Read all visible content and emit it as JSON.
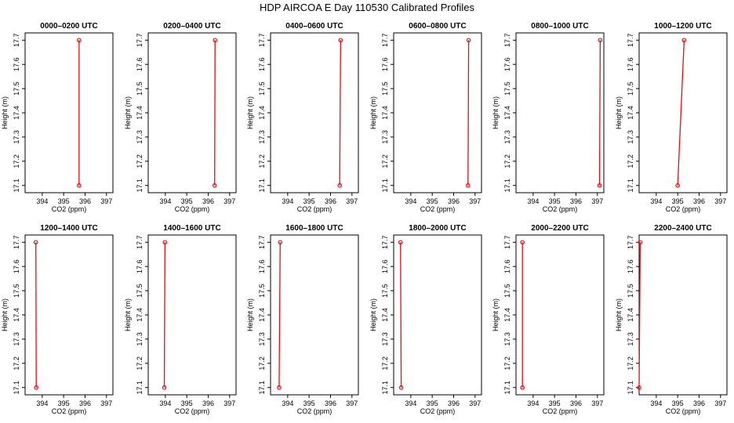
{
  "figure": {
    "title": "HDP AIRCOA E  Day 110530  Calibrated Profiles"
  },
  "chart_data": [
    {
      "type": "line",
      "title": "0000–0200 UTC",
      "xlabel": "CO2 (ppm)",
      "ylabel": "Height (m)",
      "xlim": [
        393.2,
        397.3
      ],
      "ylim": [
        17.07,
        17.73
      ],
      "x_ticks": [
        394,
        395,
        396,
        397
      ],
      "y_ticks": [
        17.1,
        17.2,
        17.3,
        17.4,
        17.5,
        17.6,
        17.7
      ],
      "series": [
        {
          "color": "#e0101a",
          "points": [
            {
              "x": 395.72,
              "y": 17.1
            },
            {
              "x": 395.72,
              "y": 17.7
            }
          ]
        }
      ]
    },
    {
      "type": "line",
      "title": "0200–0400 UTC",
      "xlabel": "CO2 (ppm)",
      "ylabel": "Height (m)",
      "xlim": [
        393.2,
        397.3
      ],
      "ylim": [
        17.07,
        17.73
      ],
      "x_ticks": [
        394,
        395,
        396,
        397
      ],
      "y_ticks": [
        17.1,
        17.2,
        17.3,
        17.4,
        17.5,
        17.6,
        17.7
      ],
      "series": [
        {
          "color": "#e0101a",
          "points": [
            {
              "x": 396.3,
              "y": 17.1
            },
            {
              "x": 396.32,
              "y": 17.7
            }
          ]
        }
      ]
    },
    {
      "type": "line",
      "title": "0400–0600 UTC",
      "xlabel": "CO2 (ppm)",
      "ylabel": "Height (m)",
      "xlim": [
        393.2,
        397.3
      ],
      "ylim": [
        17.07,
        17.73
      ],
      "x_ticks": [
        394,
        395,
        396,
        397
      ],
      "y_ticks": [
        17.1,
        17.2,
        17.3,
        17.4,
        17.5,
        17.6,
        17.7
      ],
      "series": [
        {
          "color": "#e0101a",
          "points": [
            {
              "x": 396.43,
              "y": 17.1
            },
            {
              "x": 396.47,
              "y": 17.7
            }
          ]
        }
      ]
    },
    {
      "type": "line",
      "title": "0600–0800 UTC",
      "xlabel": "CO2 (ppm)",
      "ylabel": "Height (m)",
      "xlim": [
        393.2,
        397.3
      ],
      "ylim": [
        17.07,
        17.73
      ],
      "x_ticks": [
        394,
        395,
        396,
        397
      ],
      "y_ticks": [
        17.1,
        17.2,
        17.3,
        17.4,
        17.5,
        17.6,
        17.7
      ],
      "series": [
        {
          "color": "#e0101a",
          "points": [
            {
              "x": 396.67,
              "y": 17.1
            },
            {
              "x": 396.7,
              "y": 17.7
            }
          ]
        }
      ]
    },
    {
      "type": "line",
      "title": "0800–1000 UTC",
      "xlabel": "CO2 (ppm)",
      "ylabel": "Height (m)",
      "xlim": [
        393.2,
        397.3
      ],
      "ylim": [
        17.07,
        17.73
      ],
      "x_ticks": [
        394,
        395,
        396,
        397
      ],
      "y_ticks": [
        17.1,
        17.2,
        17.3,
        17.4,
        17.5,
        17.6,
        17.7
      ],
      "series": [
        {
          "color": "#e0101a",
          "points": [
            {
              "x": 397.1,
              "y": 17.1
            },
            {
              "x": 397.13,
              "y": 17.7
            }
          ]
        }
      ]
    },
    {
      "type": "line",
      "title": "1000–1200 UTC",
      "xlabel": "CO2 (ppm)",
      "ylabel": "Height (m)",
      "xlim": [
        393.2,
        397.3
      ],
      "ylim": [
        17.07,
        17.73
      ],
      "x_ticks": [
        394,
        395,
        396,
        397
      ],
      "y_ticks": [
        17.1,
        17.2,
        17.3,
        17.4,
        17.5,
        17.6,
        17.7
      ],
      "series": [
        {
          "color": "#e0101a",
          "points": [
            {
              "x": 395.0,
              "y": 17.1
            },
            {
              "x": 395.3,
              "y": 17.7
            }
          ]
        }
      ]
    },
    {
      "type": "line",
      "title": "1200–1400 UTC",
      "xlabel": "CO2 (ppm)",
      "ylabel": "Height (m)",
      "xlim": [
        393.2,
        397.3
      ],
      "ylim": [
        17.07,
        17.73
      ],
      "x_ticks": [
        394,
        395,
        396,
        397
      ],
      "y_ticks": [
        17.1,
        17.2,
        17.3,
        17.4,
        17.5,
        17.6,
        17.7
      ],
      "series": [
        {
          "color": "#e0101a",
          "points": [
            {
              "x": 393.72,
              "y": 17.1
            },
            {
              "x": 393.7,
              "y": 17.7
            }
          ]
        }
      ]
    },
    {
      "type": "line",
      "title": "1400–1600 UTC",
      "xlabel": "CO2 (ppm)",
      "ylabel": "Height (m)",
      "xlim": [
        393.2,
        397.3
      ],
      "ylim": [
        17.07,
        17.73
      ],
      "x_ticks": [
        394,
        395,
        396,
        397
      ],
      "y_ticks": [
        17.1,
        17.2,
        17.3,
        17.4,
        17.5,
        17.6,
        17.7
      ],
      "series": [
        {
          "color": "#e0101a",
          "points": [
            {
              "x": 393.95,
              "y": 17.1
            },
            {
              "x": 393.98,
              "y": 17.7
            }
          ]
        }
      ]
    },
    {
      "type": "line",
      "title": "1600–1800 UTC",
      "xlabel": "CO2 (ppm)",
      "ylabel": "Height (m)",
      "xlim": [
        393.2,
        397.3
      ],
      "ylim": [
        17.07,
        17.73
      ],
      "x_ticks": [
        394,
        395,
        396,
        397
      ],
      "y_ticks": [
        17.1,
        17.2,
        17.3,
        17.4,
        17.5,
        17.6,
        17.7
      ],
      "series": [
        {
          "color": "#e0101a",
          "points": [
            {
              "x": 393.6,
              "y": 17.1
            },
            {
              "x": 393.65,
              "y": 17.7
            }
          ]
        }
      ]
    },
    {
      "type": "line",
      "title": "1800–2000 UTC",
      "xlabel": "CO2 (ppm)",
      "ylabel": "Height (m)",
      "xlim": [
        393.2,
        397.3
      ],
      "ylim": [
        17.07,
        17.73
      ],
      "x_ticks": [
        394,
        395,
        396,
        397
      ],
      "y_ticks": [
        17.1,
        17.2,
        17.3,
        17.4,
        17.5,
        17.6,
        17.7
      ],
      "series": [
        {
          "color": "#e0101a",
          "points": [
            {
              "x": 393.55,
              "y": 17.1
            },
            {
              "x": 393.52,
              "y": 17.7
            }
          ]
        }
      ]
    },
    {
      "type": "line",
      "title": "2000–2200 UTC",
      "xlabel": "CO2 (ppm)",
      "ylabel": "Height (m)",
      "xlim": [
        393.2,
        397.3
      ],
      "ylim": [
        17.07,
        17.73
      ],
      "x_ticks": [
        394,
        395,
        396,
        397
      ],
      "y_ticks": [
        17.1,
        17.2,
        17.3,
        17.4,
        17.5,
        17.6,
        17.7
      ],
      "series": [
        {
          "color": "#e0101a",
          "points": [
            {
              "x": 393.5,
              "y": 17.1
            },
            {
              "x": 393.5,
              "y": 17.7
            }
          ]
        }
      ]
    },
    {
      "type": "line",
      "title": "2200–2400 UTC",
      "xlabel": "CO2 (ppm)",
      "ylabel": "Height (m)",
      "xlim": [
        393.2,
        397.3
      ],
      "ylim": [
        17.07,
        17.73
      ],
      "x_ticks": [
        394,
        395,
        396,
        397
      ],
      "y_ticks": [
        17.1,
        17.2,
        17.3,
        17.4,
        17.5,
        17.6,
        17.7
      ],
      "series": [
        {
          "color": "#e0101a",
          "points": [
            {
              "x": 393.2,
              "y": 17.1
            },
            {
              "x": 393.25,
              "y": 17.7
            }
          ]
        }
      ]
    }
  ]
}
